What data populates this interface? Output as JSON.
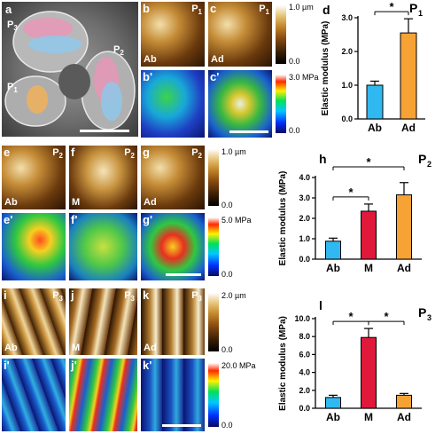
{
  "panel_letters": {
    "a": "a",
    "b": "b",
    "b2": "b'",
    "c": "c",
    "c2": "c'",
    "d": "d",
    "e": "e",
    "e2": "e'",
    "f": "f",
    "f2": "f'",
    "g": "g",
    "g2": "g'",
    "h": "h",
    "i": "i",
    "i2": "i'",
    "j": "j",
    "j2": "j'",
    "k": "k",
    "k2": "k'",
    "l": "l"
  },
  "petal_labels": {
    "p1": "P",
    "p1_sub": "1",
    "p2": "P",
    "p2_sub": "2",
    "p3": "P",
    "p3_sub": "3"
  },
  "surface_labels": {
    "ab": "Ab",
    "ad": "Ad",
    "m": "M"
  },
  "colorbars": {
    "row1_height_max": "1.0 µm",
    "row1_height_min": "0.0",
    "row1_mod_max": "3.0 MPa",
    "row1_mod_min": "0.0",
    "row2_height_max": "1.0 µm",
    "row2_height_min": "0.0",
    "row2_mod_max": "5.0 MPa",
    "row2_mod_min": "0.0",
    "row3_height_max": "2.0 µm",
    "row3_height_min": "0.0",
    "row3_mod_max": "20.0 MPa",
    "row3_mod_min": "0.0"
  },
  "colors": {
    "ab": "#2fb9f0",
    "m": "#e0193a",
    "ad": "#f7a234"
  },
  "chart_data": [
    {
      "type": "bar",
      "panel": "d",
      "title": "P",
      "title_sub": "1",
      "ylabel": "Elastic modulus (MPa)",
      "categories": [
        "Ab",
        "Ad"
      ],
      "values": [
        1.0,
        2.55
      ],
      "errors": [
        0.12,
        0.42
      ],
      "ylim": [
        0,
        3.0
      ],
      "yticks": [
        "0.0",
        "1.0",
        "2.0",
        "3.0"
      ],
      "significance": [
        {
          "from": 0,
          "to": 1,
          "label": "*"
        }
      ]
    },
    {
      "type": "bar",
      "panel": "h",
      "title": "P",
      "title_sub": "2",
      "ylabel": "Elastic modulus (MPa)",
      "categories": [
        "Ab",
        "M",
        "Ad"
      ],
      "values": [
        0.88,
        2.35,
        3.15
      ],
      "errors": [
        0.15,
        0.35,
        0.6
      ],
      "ylim": [
        0,
        4.0
      ],
      "yticks": [
        "0.0",
        "1.0",
        "2.0",
        "3.0",
        "4.0"
      ],
      "significance": [
        {
          "from": 0,
          "to": 1,
          "label": "*"
        },
        {
          "from": 0,
          "to": 2,
          "label": "*"
        }
      ]
    },
    {
      "type": "bar",
      "panel": "l",
      "title": "P",
      "title_sub": "3",
      "ylabel": "Elastic modulus (MPa)",
      "categories": [
        "Ab",
        "M",
        "Ad"
      ],
      "values": [
        1.2,
        7.9,
        1.45
      ],
      "errors": [
        0.25,
        1.0,
        0.2
      ],
      "ylim": [
        0,
        10.0
      ],
      "yticks": [
        "0.0",
        "2.0",
        "4.0",
        "6.0",
        "8.0",
        "10.0"
      ],
      "significance": [
        {
          "from": 0,
          "to": 1,
          "label": "*"
        },
        {
          "from": 1,
          "to": 2,
          "label": "*"
        }
      ]
    }
  ]
}
